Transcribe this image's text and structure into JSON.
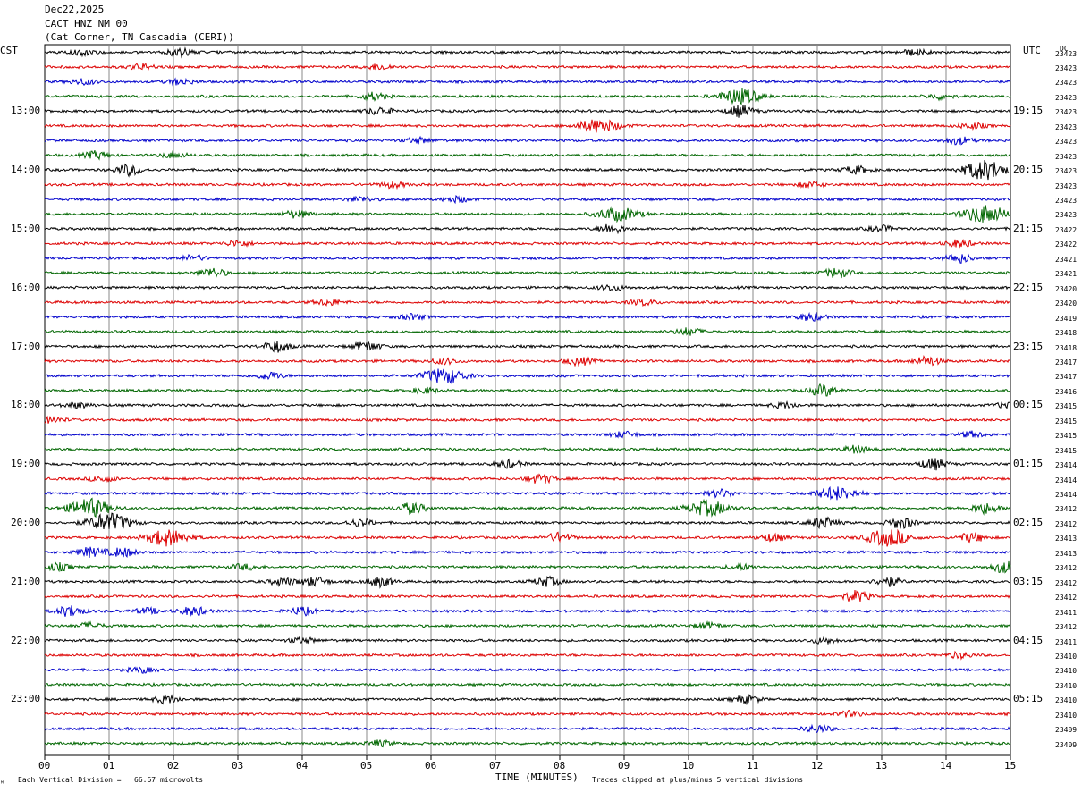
{
  "header": {
    "date": "Dec22,2025",
    "station": "CACT HNZ NM 00",
    "location": "(Cat Corner, TN Cascadia (CERI))"
  },
  "left_tz": "CST",
  "right_tz": "UTC",
  "dc_label": "DC",
  "footer": {
    "scale": "Each Vertical Division =   66.67 microvolts",
    "xlabel": "TIME (MINUTES)",
    "clip_note": "Traces clipped at plus/minus 5 vertical divisions"
  },
  "chart_data": {
    "type": "line",
    "title": "CACT HNZ NM 00",
    "xlabel": "TIME (MINUTES)",
    "xlim": [
      0,
      15
    ],
    "x_ticks": [
      "00",
      "01",
      "02",
      "03",
      "04",
      "05",
      "06",
      "07",
      "08",
      "09",
      "10",
      "11",
      "12",
      "13",
      "14",
      "15"
    ],
    "grid": true,
    "trace_colors": [
      "#000000",
      "#dd0000",
      "#0000cc",
      "#006600"
    ],
    "left_hour_labels": [
      "13:00",
      "14:00",
      "15:00",
      "16:00",
      "17:00",
      "18:00",
      "19:00",
      "20:00",
      "21:00",
      "22:00",
      "23:00"
    ],
    "right_hour_labels": [
      "19:15",
      "20:15",
      "21:15",
      "22:15",
      "23:15",
      "00:15",
      "01:15",
      "02:15",
      "03:15",
      "04:15",
      "05:15"
    ],
    "dc_offsets": [
      "23423",
      "23423",
      "23423",
      "23423",
      "23423",
      "23423",
      "23423",
      "23423",
      "23423",
      "23423",
      "23423",
      "23423",
      "23422",
      "23422",
      "23421",
      "23421",
      "23420",
      "23420",
      "23419",
      "23418",
      "23418",
      "23417",
      "23417",
      "23416",
      "23415",
      "23415",
      "23415",
      "23415",
      "23414",
      "23414",
      "23414",
      "23412",
      "23412",
      "23413",
      "23413",
      "23412",
      "23412",
      "23412",
      "23411",
      "23412",
      "23411",
      "23410",
      "23410",
      "23410",
      "23410",
      "23410",
      "23409",
      "23409"
    ],
    "events": [
      {
        "trace": 0,
        "minute": 0.6,
        "amp": 3
      },
      {
        "trace": 0,
        "minute": 2.1,
        "amp": 4
      },
      {
        "trace": 0,
        "minute": 13.5,
        "amp": 3
      },
      {
        "trace": 1,
        "minute": 1.5,
        "amp": 3
      },
      {
        "trace": 1,
        "minute": 5.2,
        "amp": 3
      },
      {
        "trace": 2,
        "minute": 0.6,
        "amp": 3
      },
      {
        "trace": 2,
        "minute": 2.1,
        "amp": 3
      },
      {
        "trace": 3,
        "minute": 10.8,
        "amp": 8
      },
      {
        "trace": 3,
        "minute": 5.1,
        "amp": 4
      },
      {
        "trace": 3,
        "minute": 13.9,
        "amp": 3
      },
      {
        "trace": 4,
        "minute": 5.2,
        "amp": 4
      },
      {
        "trace": 4,
        "minute": 10.8,
        "amp": 6
      },
      {
        "trace": 5,
        "minute": 8.6,
        "amp": 7
      },
      {
        "trace": 5,
        "minute": 14.4,
        "amp": 3
      },
      {
        "trace": 6,
        "minute": 14.2,
        "amp": 4
      },
      {
        "trace": 6,
        "minute": 5.8,
        "amp": 3
      },
      {
        "trace": 7,
        "minute": 0.8,
        "amp": 4
      },
      {
        "trace": 7,
        "minute": 2.0,
        "amp": 3
      },
      {
        "trace": 8,
        "minute": 1.3,
        "amp": 6
      },
      {
        "trace": 8,
        "minute": 14.6,
        "amp": 11
      },
      {
        "trace": 8,
        "minute": 12.6,
        "amp": 4
      },
      {
        "trace": 9,
        "minute": 5.4,
        "amp": 3
      },
      {
        "trace": 9,
        "minute": 11.9,
        "amp": 3
      },
      {
        "trace": 10,
        "minute": 4.9,
        "amp": 3
      },
      {
        "trace": 10,
        "minute": 6.4,
        "amp": 3
      },
      {
        "trace": 11,
        "minute": 8.9,
        "amp": 7
      },
      {
        "trace": 11,
        "minute": 14.6,
        "amp": 10
      },
      {
        "trace": 11,
        "minute": 3.9,
        "amp": 4
      },
      {
        "trace": 12,
        "minute": 8.8,
        "amp": 5
      },
      {
        "trace": 12,
        "minute": 13.0,
        "amp": 3
      },
      {
        "trace": 13,
        "minute": 14.2,
        "amp": 4
      },
      {
        "trace": 13,
        "minute": 3.0,
        "amp": 3
      },
      {
        "trace": 14,
        "minute": 2.3,
        "amp": 3
      },
      {
        "trace": 14,
        "minute": 14.2,
        "amp": 5
      },
      {
        "trace": 15,
        "minute": 2.6,
        "amp": 5
      },
      {
        "trace": 15,
        "minute": 12.3,
        "amp": 5
      },
      {
        "trace": 16,
        "minute": 8.8,
        "amp": 3
      },
      {
        "trace": 17,
        "minute": 4.4,
        "amp": 3
      },
      {
        "trace": 17,
        "minute": 9.3,
        "amp": 3
      },
      {
        "trace": 18,
        "minute": 5.7,
        "amp": 3
      },
      {
        "trace": 18,
        "minute": 11.9,
        "amp": 4
      },
      {
        "trace": 19,
        "minute": 10.0,
        "amp": 4
      },
      {
        "trace": 20,
        "minute": 3.6,
        "amp": 6
      },
      {
        "trace": 20,
        "minute": 5.0,
        "amp": 5
      },
      {
        "trace": 21,
        "minute": 8.3,
        "amp": 4
      },
      {
        "trace": 21,
        "minute": 13.7,
        "amp": 5
      },
      {
        "trace": 21,
        "minute": 6.2,
        "amp": 3
      },
      {
        "trace": 22,
        "minute": 6.2,
        "amp": 8
      },
      {
        "trace": 22,
        "minute": 3.5,
        "amp": 4
      },
      {
        "trace": 23,
        "minute": 12.1,
        "amp": 6
      },
      {
        "trace": 23,
        "minute": 5.9,
        "amp": 3
      },
      {
        "trace": 24,
        "minute": 0.5,
        "amp": 3
      },
      {
        "trace": 24,
        "minute": 15.0,
        "amp": 4
      },
      {
        "trace": 24,
        "minute": 11.5,
        "amp": 3
      },
      {
        "trace": 25,
        "minute": 0.1,
        "amp": 3
      },
      {
        "trace": 26,
        "minute": 9.0,
        "amp": 3
      },
      {
        "trace": 26,
        "minute": 14.4,
        "amp": 3
      },
      {
        "trace": 27,
        "minute": 12.6,
        "amp": 4
      },
      {
        "trace": 28,
        "minute": 7.2,
        "amp": 4
      },
      {
        "trace": 28,
        "minute": 13.8,
        "amp": 6
      },
      {
        "trace": 29,
        "minute": 7.7,
        "amp": 5
      },
      {
        "trace": 29,
        "minute": 0.9,
        "amp": 3
      },
      {
        "trace": 30,
        "minute": 10.5,
        "amp": 4
      },
      {
        "trace": 30,
        "minute": 12.3,
        "amp": 7
      },
      {
        "trace": 31,
        "minute": 0.7,
        "amp": 10
      },
      {
        "trace": 31,
        "minute": 5.7,
        "amp": 6
      },
      {
        "trace": 31,
        "minute": 10.3,
        "amp": 8
      },
      {
        "trace": 31,
        "minute": 14.6,
        "amp": 6
      },
      {
        "trace": 32,
        "minute": 1.0,
        "amp": 10
      },
      {
        "trace": 32,
        "minute": 12.1,
        "amp": 6
      },
      {
        "trace": 32,
        "minute": 13.3,
        "amp": 6
      },
      {
        "trace": 32,
        "minute": 4.9,
        "amp": 4
      },
      {
        "trace": 33,
        "minute": 1.9,
        "amp": 9
      },
      {
        "trace": 33,
        "minute": 13.1,
        "amp": 9
      },
      {
        "trace": 33,
        "minute": 8.0,
        "amp": 5
      },
      {
        "trace": 33,
        "minute": 14.4,
        "amp": 5
      },
      {
        "trace": 33,
        "minute": 11.3,
        "amp": 4
      },
      {
        "trace": 34,
        "minute": 0.7,
        "amp": 5
      },
      {
        "trace": 34,
        "minute": 1.2,
        "amp": 5
      },
      {
        "trace": 35,
        "minute": 0.2,
        "amp": 4
      },
      {
        "trace": 35,
        "minute": 14.9,
        "amp": 6
      },
      {
        "trace": 35,
        "minute": 10.8,
        "amp": 3
      },
      {
        "trace": 35,
        "minute": 3.1,
        "amp": 3
      },
      {
        "trace": 36,
        "minute": 4.2,
        "amp": 5
      },
      {
        "trace": 36,
        "minute": 5.2,
        "amp": 5
      },
      {
        "trace": 36,
        "minute": 7.8,
        "amp": 5
      },
      {
        "trace": 36,
        "minute": 13.1,
        "amp": 5
      },
      {
        "trace": 36,
        "minute": 3.7,
        "amp": 4
      },
      {
        "trace": 37,
        "minute": 12.6,
        "amp": 6
      },
      {
        "trace": 38,
        "minute": 0.4,
        "amp": 6
      },
      {
        "trace": 38,
        "minute": 2.3,
        "amp": 5
      },
      {
        "trace": 38,
        "minute": 4.0,
        "amp": 4
      },
      {
        "trace": 38,
        "minute": 1.6,
        "amp": 3
      },
      {
        "trace": 39,
        "minute": 0.7,
        "amp": 3
      },
      {
        "trace": 39,
        "minute": 10.3,
        "amp": 3
      },
      {
        "trace": 40,
        "minute": 4.0,
        "amp": 3
      },
      {
        "trace": 40,
        "minute": 12.1,
        "amp": 3
      },
      {
        "trace": 41,
        "minute": 14.2,
        "amp": 3
      },
      {
        "trace": 42,
        "minute": 1.5,
        "amp": 3
      },
      {
        "trace": 44,
        "minute": 1.9,
        "amp": 4
      },
      {
        "trace": 44,
        "minute": 10.9,
        "amp": 4
      },
      {
        "trace": 45,
        "minute": 12.5,
        "amp": 3
      },
      {
        "trace": 46,
        "minute": 12.0,
        "amp": 4
      },
      {
        "trace": 47,
        "minute": 5.2,
        "amp": 3
      }
    ]
  }
}
